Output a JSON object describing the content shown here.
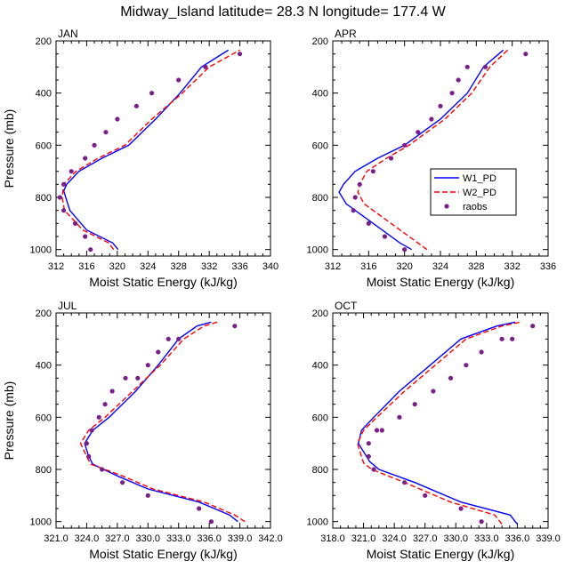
{
  "figure": {
    "title": "Midway_Island  latitude= 28.3 N longitude= 177.4 W"
  },
  "colors": {
    "w1": "#0000ff",
    "w2": "#ff0000",
    "raobs": "#7a1f8a",
    "axis": "#000000"
  },
  "legend": {
    "items": [
      {
        "label": "W1_PD",
        "style": "solid"
      },
      {
        "label": "W2_PD",
        "style": "dashed"
      },
      {
        "label": "raobs",
        "style": "dot"
      }
    ]
  },
  "chart_data": [
    {
      "type": "line",
      "title": "JAN",
      "xlabel": "Moist Static Energy (kJ/kg)",
      "ylabel": "Pressure (mb)",
      "xlim": [
        312,
        340
      ],
      "ylim": [
        1025,
        200
      ],
      "xticks": [
        312,
        316,
        320,
        324,
        328,
        332,
        336,
        340
      ],
      "xticklabels": [
        "312",
        "316",
        "320",
        "324",
        "328",
        "332",
        "336",
        "340"
      ],
      "yticks": [
        200,
        400,
        600,
        800,
        1000
      ],
      "yticklabels": [
        "200",
        "400",
        "600",
        "800",
        "1000"
      ],
      "series": [
        {
          "name": "W1_PD",
          "x": [
            320.1,
            319.4,
            316.0,
            313.8,
            313.0,
            313.4,
            315.0,
            318.0,
            321.5,
            325.0,
            328.2,
            331.0,
            334.5
          ],
          "y": [
            1000,
            975,
            925,
            850,
            775,
            750,
            700,
            650,
            600,
            500,
            400,
            300,
            235
          ]
        },
        {
          "name": "W2_PD",
          "x": [
            319.5,
            318.9,
            315.5,
            313.1,
            312.8,
            313.0,
            314.6,
            317.5,
            321.0,
            324.5,
            328.5,
            332.0,
            336.0
          ],
          "y": [
            1000,
            975,
            925,
            850,
            800,
            750,
            700,
            650,
            600,
            500,
            400,
            300,
            235
          ]
        },
        {
          "name": "raobs",
          "x": [
            316.5,
            315.8,
            314.5,
            313.0,
            312.5,
            313.0,
            314.0,
            315.8,
            317.0,
            318.5,
            320.0,
            322.5,
            324.5,
            328.0,
            331.5,
            336.0
          ],
          "y": [
            1000,
            950,
            900,
            850,
            800,
            750,
            700,
            650,
            600,
            550,
            500,
            450,
            400,
            350,
            300,
            250
          ]
        }
      ]
    },
    {
      "type": "line",
      "title": "APR",
      "xlabel": "Moist Static Energy (kJ/kg)",
      "ylabel": "",
      "xlim": [
        312,
        336
      ],
      "ylim": [
        1025,
        200
      ],
      "xticks": [
        312,
        316,
        320,
        324,
        328,
        332,
        336
      ],
      "xticklabels": [
        "312",
        "316",
        "320",
        "324",
        "328",
        "332",
        "336"
      ],
      "yticks": [
        200,
        400,
        600,
        800,
        1000
      ],
      "yticklabels": [
        "200",
        "400",
        "600",
        "800",
        "1000"
      ],
      "series": [
        {
          "name": "W1_PD",
          "x": [
            320.8,
            319.5,
            316.5,
            313.5,
            312.7,
            313.2,
            314.5,
            317.0,
            320.0,
            324.0,
            327.0,
            328.8,
            331.0
          ],
          "y": [
            1000,
            975,
            900,
            825,
            780,
            750,
            700,
            650,
            600,
            500,
            400,
            300,
            235
          ]
        },
        {
          "name": "W2_PD",
          "x": [
            322.5,
            321.5,
            318.5,
            315.5,
            314.8,
            315.0,
            315.8,
            318.0,
            320.5,
            324.5,
            327.5,
            329.5,
            331.5
          ],
          "y": [
            1000,
            975,
            900,
            825,
            780,
            750,
            700,
            650,
            600,
            500,
            400,
            300,
            235
          ]
        },
        {
          "name": "raobs",
          "x": [
            320.0,
            317.8,
            316.0,
            314.3,
            314.5,
            315.0,
            316.5,
            318.5,
            320.0,
            321.5,
            323.0,
            324.0,
            325.3,
            326.0,
            327.0,
            329.0,
            333.5
          ],
          "y": [
            1000,
            950,
            900,
            850,
            800,
            750,
            700,
            650,
            600,
            550,
            500,
            450,
            400,
            350,
            300,
            300,
            250
          ]
        }
      ]
    },
    {
      "type": "line",
      "title": "JUL",
      "xlabel": "Moist Static Energy (kJ/kg)",
      "ylabel": "Pressure (mb)",
      "xlim": [
        321,
        342
      ],
      "ylim": [
        1025,
        200
      ],
      "xticks": [
        321,
        324,
        327,
        330,
        333,
        336,
        339,
        342
      ],
      "xticklabels": [
        "321.0",
        "324.0",
        "327.0",
        "330.0",
        "333.0",
        "336.0",
        "339.0",
        "342.0"
      ],
      "yticks": [
        200,
        400,
        600,
        800,
        1000
      ],
      "yticklabels": [
        "200",
        "400",
        "600",
        "800",
        "1000"
      ],
      "series": [
        {
          "name": "W1_PD",
          "x": [
            338.8,
            338.0,
            335.0,
            330.0,
            327.0,
            324.6,
            324.2,
            323.8,
            324.6,
            326.2,
            328.8,
            331.0,
            333.0,
            334.8,
            336.2
          ],
          "y": [
            1000,
            975,
            925,
            875,
            825,
            780,
            750,
            700,
            650,
            600,
            500,
            400,
            300,
            250,
            235
          ]
        },
        {
          "name": "W2_PD",
          "x": [
            339.5,
            338.5,
            335.5,
            330.5,
            327.5,
            324.4,
            324.0,
            323.4,
            324.2,
            325.8,
            328.5,
            331.2,
            333.5,
            335.5,
            336.8
          ],
          "y": [
            1000,
            975,
            925,
            875,
            825,
            780,
            750,
            700,
            650,
            600,
            500,
            400,
            300,
            250,
            235
          ]
        },
        {
          "name": "raobs",
          "x": [
            336.2,
            335.0,
            330.0,
            327.5,
            325.5,
            324.2,
            324.0,
            324.5,
            325.2,
            325.8,
            326.5,
            327.8,
            329.0,
            330.0,
            331.0,
            332.0,
            333.0,
            338.5
          ],
          "y": [
            1000,
            950,
            900,
            850,
            800,
            750,
            700,
            650,
            600,
            550,
            500,
            450,
            450,
            400,
            350,
            300,
            300,
            250
          ]
        }
      ]
    },
    {
      "type": "line",
      "title": "OCT",
      "xlabel": "Moist Static Energy (kJ/kg)",
      "ylabel": "",
      "xlim": [
        318,
        339
      ],
      "ylim": [
        1025,
        200
      ],
      "xticks": [
        318,
        321,
        324,
        327,
        330,
        333,
        336,
        339
      ],
      "xticklabels": [
        "318.0",
        "321.0",
        "324.0",
        "327.0",
        "330.0",
        "333.0",
        "336.0",
        "339.0"
      ],
      "yticks": [
        200,
        400,
        600,
        800,
        1000
      ],
      "yticklabels": [
        "200",
        "400",
        "600",
        "800",
        "1000"
      ],
      "series": [
        {
          "name": "W1_PD",
          "x": [
            336.0,
            335.3,
            330.5,
            326.0,
            322.5,
            321.6,
            320.5,
            320.8,
            322.0,
            324.5,
            327.5,
            330.5,
            334.0,
            335.8
          ],
          "y": [
            1010,
            975,
            925,
            850,
            800,
            770,
            700,
            650,
            600,
            500,
            400,
            300,
            250,
            235
          ]
        },
        {
          "name": "W2_PD",
          "x": [
            334.5,
            333.8,
            329.5,
            325.0,
            321.8,
            321.0,
            320.4,
            321.0,
            322.3,
            325.0,
            328.0,
            331.0,
            334.5,
            336.3
          ],
          "y": [
            1010,
            975,
            925,
            850,
            800,
            775,
            700,
            650,
            600,
            500,
            400,
            300,
            250,
            235
          ]
        },
        {
          "name": "raobs",
          "x": [
            332.5,
            330.5,
            327.0,
            325.0,
            322.0,
            321.5,
            321.5,
            322.3,
            322.8,
            324.5,
            326.0,
            327.8,
            329.5,
            331.0,
            332.5,
            334.5,
            335.5,
            337.5
          ],
          "y": [
            1000,
            950,
            900,
            850,
            800,
            750,
            700,
            650,
            650,
            600,
            550,
            500,
            450,
            400,
            350,
            300,
            300,
            250
          ]
        }
      ]
    }
  ]
}
